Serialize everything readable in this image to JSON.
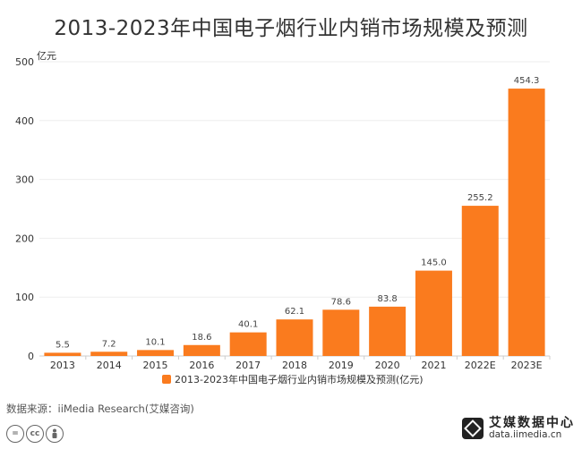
{
  "header": {
    "title": "2013-2023年中国电子烟行业内销市场规模及预测"
  },
  "colors": {
    "bar": "#FA7B1E",
    "axis": "#cccccc",
    "grid": "#eeeeee",
    "text": "#333333"
  },
  "chart_data": {
    "type": "bar",
    "title": "2013-2023年中国电子烟行业内销市场规模及预测",
    "categories": [
      "2013",
      "2014",
      "2015",
      "2016",
      "2017",
      "2018",
      "2019",
      "2020",
      "2021",
      "2022E",
      "2023E"
    ],
    "series": [
      {
        "name": "2013-2023年中国电子烟行业内销市场规模及预测(亿元)",
        "values": [
          5.5,
          7.2,
          10.1,
          18.6,
          40.1,
          62.1,
          78.6,
          83.8,
          145.0,
          255.2,
          454.3
        ]
      }
    ],
    "value_labels": [
      "5.5",
      "7.2",
      "10.1",
      "18.6",
      "40.1",
      "62.1",
      "78.6",
      "83.8",
      "145.0",
      "255.2",
      "454.3"
    ],
    "y_unit": "亿元",
    "ylim": [
      0,
      500
    ],
    "yticks": [
      0,
      100,
      200,
      300,
      400,
      500
    ],
    "grid": true,
    "legend": "bottom-center"
  },
  "footer": {
    "source": "数据来源：iiMedia Research(艾媒咨询)",
    "license_icons": [
      "=",
      "cc",
      "person-icon"
    ],
    "brand_name": "艾媒数据中心",
    "brand_url": "data.iimedia.cn"
  }
}
